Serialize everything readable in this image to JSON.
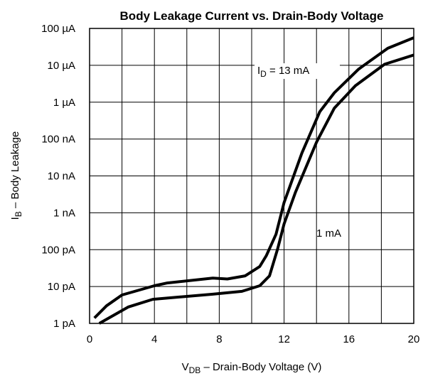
{
  "chart_data": {
    "type": "line",
    "title": "Body Leakage Current vs. Drain-Body Voltage",
    "x_label": {
      "main": "V",
      "sub": "DB",
      "rest": " – Drain-Body Voltage (V)"
    },
    "y_label": {
      "main": "I",
      "sub": "B",
      "rest": " – Body Leakage"
    },
    "annotations": [
      {
        "main": "I",
        "sub": "D",
        "rest": " = 13 mA"
      },
      {
        "main": "1 mA"
      }
    ],
    "xlim": [
      0,
      20
    ],
    "xticks": [
      0,
      4,
      8,
      12,
      16,
      20
    ],
    "xgrid_ticks": [
      0,
      2,
      4,
      6,
      8,
      10,
      12,
      14,
      16,
      18,
      20
    ],
    "ylim": [
      1e-12,
      0.0001
    ],
    "ylog": true,
    "grid": true,
    "yticks": [
      {
        "value": 1e-12,
        "label": "1 pA"
      },
      {
        "value": 1e-11,
        "label": "10 pA"
      },
      {
        "value": 1e-10,
        "label": "100 pA"
      },
      {
        "value": 1e-09,
        "label": "1 nA"
      },
      {
        "value": 1e-08,
        "label": "10 nA"
      },
      {
        "value": 1e-07,
        "label": "100 nA"
      },
      {
        "value": 1e-06,
        "label": "1 µA"
      },
      {
        "value": 1e-05,
        "label": "10 µA"
      },
      {
        "value": 0.0001,
        "label": "100 µA"
      }
    ],
    "series": [
      {
        "color": "#000000",
        "x": [
          0.3,
          1.05,
          2,
          4,
          4.8,
          7.6,
          8.5,
          9.6,
          10.5,
          10.9,
          11.5,
          12,
          13.1,
          14.2,
          15.1,
          16.6,
          18.4,
          20
        ],
        "values": [
          1.4e-12,
          3e-12,
          5.9e-12,
          1.05e-11,
          1.25e-11,
          1.7e-11,
          1.6e-11,
          1.95e-11,
          3.5e-11,
          6.8e-11,
          2.6e-10,
          1.9e-09,
          4.2e-08,
          5.5e-07,
          1.8e-06,
          7.9e-06,
          2.9e-05,
          5.6e-05
        ]
      },
      {
        "color": "#000000",
        "x": [
          0.6,
          2.4,
          3.9,
          7.6,
          9.4,
          10.5,
          11.1,
          11.6,
          12,
          12.7,
          14,
          15.1,
          16.4,
          18.2,
          20
        ],
        "values": [
          1e-12,
          2.8e-12,
          4.5e-12,
          6.2e-12,
          7.4e-12,
          1.05e-11,
          1.95e-11,
          1.05e-10,
          5e-10,
          3.6e-09,
          8.2e-08,
          6.9e-07,
          2.8e-06,
          1.07e-05,
          1.9e-05
        ]
      }
    ]
  }
}
